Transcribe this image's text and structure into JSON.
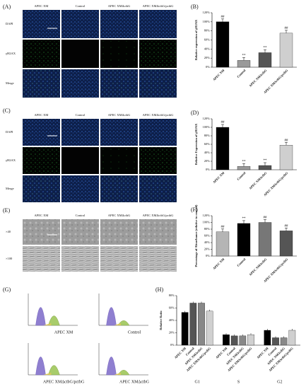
{
  "panels": {
    "A": {
      "label": "(A)",
      "columns": [
        "APEC XM",
        "Control",
        "APEC XMΔctbG",
        "APEC XMΔctbG/pctbG"
      ],
      "rows": [
        "DAPI",
        "γH2AX",
        "Merge"
      ]
    },
    "C": {
      "label": "(C)",
      "columns": [
        "APEC XM",
        "Control",
        "APEC XMΔctbG",
        "APEC XMΔctbG/pctbG"
      ],
      "rows": [
        "DAPI",
        "γH2AX",
        "Merge"
      ]
    },
    "E": {
      "label": "(E)",
      "columns": [
        "APEC XM",
        "Control",
        "APEC XMΔctbG",
        "APEC XMΔctbG/pctbG"
      ],
      "rows": [
        "×40",
        "×100"
      ]
    },
    "G": {
      "label": "(G)",
      "plots": [
        "APEC XM",
        "Control",
        "APEC XMΔctbG/pctbG",
        "APEC XMΔctbG"
      ]
    }
  },
  "chart_data": [
    {
      "type": "bar",
      "label": "(B)",
      "ylabel": "Relative expression of γH2AX",
      "categories": [
        "APEC XM",
        "Control",
        "APEC XMΔctbG",
        "APEC XMΔctbG/pctbG"
      ],
      "values": [
        100,
        15,
        32,
        75
      ],
      "colors": [
        "#000000",
        "#9a9a9a",
        "#555555",
        "#cfcfcf"
      ],
      "annotations": [
        "##",
        "**",
        "**",
        "##"
      ],
      "ylim": [
        0,
        120
      ],
      "yticks": [
        {
          "value": 0,
          "label": "0%"
        },
        {
          "value": 20,
          "label": "20%"
        },
        {
          "value": 40,
          "label": "40%"
        },
        {
          "value": 60,
          "label": "60%"
        },
        {
          "value": 80,
          "label": "80%"
        },
        {
          "value": 100,
          "label": "100%"
        },
        {
          "value": 120,
          "label": "120%"
        }
      ]
    },
    {
      "type": "bar",
      "label": "(D)",
      "ylabel": "Relative Expression of γH2AX",
      "categories": [
        "APEC XM",
        "Control",
        "APEC XMΔctbG",
        "APEC XMΔctbG/pctbG"
      ],
      "values": [
        100,
        8,
        10,
        58
      ],
      "colors": [
        "#000000",
        "#9a9a9a",
        "#555555",
        "#cfcfcf"
      ],
      "annotations": [
        "##",
        "**",
        "**",
        "##"
      ],
      "ylim": [
        0,
        120
      ],
      "yticks": [
        {
          "value": 0,
          "label": "0%"
        },
        {
          "value": 20,
          "label": "20%"
        },
        {
          "value": 40,
          "label": "40%"
        },
        {
          "value": 60,
          "label": "60%"
        },
        {
          "value": 80,
          "label": "80%"
        },
        {
          "value": 100,
          "label": "100%"
        },
        {
          "value": 120,
          "label": "120%"
        }
      ]
    },
    {
      "type": "bar",
      "label": "(F)",
      "ylabel": "Percentage of Absorbance (relative to control)",
      "categories": [
        "APEC XM",
        "Control",
        "APEC XMΔctbG",
        "APEC XMΔctbG/pctbG"
      ],
      "values": [
        72,
        97,
        100,
        75
      ],
      "colors": [
        "#b5b5b5",
        "#000000",
        "#777777",
        "#555555"
      ],
      "annotations": [
        "##",
        "**",
        "##",
        "##"
      ],
      "ylim": [
        0,
        120
      ],
      "yticks": [
        {
          "value": 0,
          "label": "0%"
        },
        {
          "value": 20,
          "label": "20%"
        },
        {
          "value": 40,
          "label": "40%"
        },
        {
          "value": 60,
          "label": "60%"
        },
        {
          "value": 80,
          "label": "80%"
        },
        {
          "value": 100,
          "label": "100%"
        },
        {
          "value": 120,
          "label": "120%"
        }
      ]
    },
    {
      "type": "grouped_bar",
      "label": "(H)",
      "ylabel": "Relative Ratio",
      "categories": [
        "G1",
        "S",
        "G2"
      ],
      "series": [
        {
          "name": "APEC XM",
          "color": "#000000",
          "values": [
            53,
            17,
            24
          ]
        },
        {
          "name": "Control",
          "color": "#555555",
          "values": [
            68,
            15,
            12
          ]
        },
        {
          "name": "APEC XMΔctbG",
          "color": "#888888",
          "values": [
            68,
            15,
            12
          ]
        },
        {
          "name": "APEC XMΔctbG/pctbG",
          "color": "#d0d0d0",
          "values": [
            55,
            17,
            24
          ]
        }
      ],
      "ylim": [
        0,
        80
      ],
      "yticks": [
        {
          "value": 0,
          "label": "0%"
        },
        {
          "value": 20,
          "label": "20%"
        },
        {
          "value": 40,
          "label": "40%"
        },
        {
          "value": 60,
          "label": "60%"
        },
        {
          "value": 80,
          "label": "80%"
        }
      ]
    }
  ]
}
